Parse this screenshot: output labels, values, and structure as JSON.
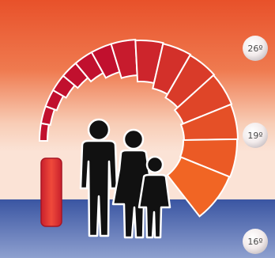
{
  "thermostat": {
    "temperature_scale": {
      "high_label": "26º",
      "mid_label": "19º",
      "low_label": "16º"
    },
    "colors": {
      "background_top": "#ec5b2f",
      "background_mid": "#f6c3a9",
      "background_bottom": "#3f5aa4",
      "arc_cool": "#f16524",
      "arc_warm": "#c1102e",
      "left_indicator": "#e33a33",
      "figures": "#111111"
    },
    "icons": {
      "gauge": "heating-arc-gauge-icon",
      "family": "family-silhouette-icon",
      "indicator": "temperature-bar-icon"
    }
  }
}
